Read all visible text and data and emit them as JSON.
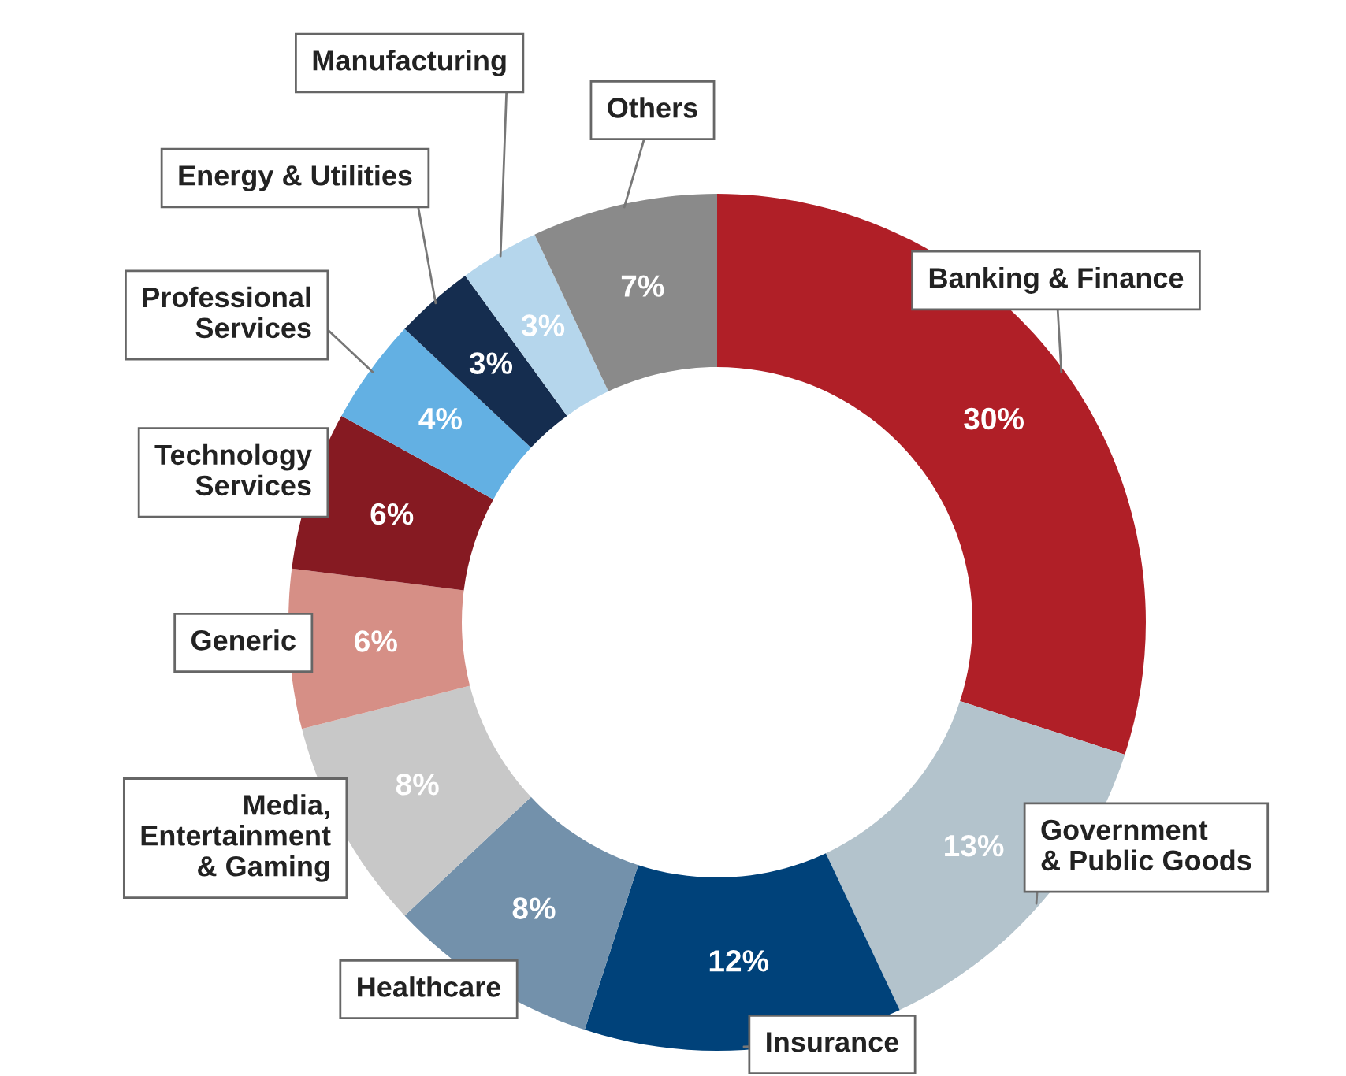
{
  "chart_data": {
    "type": "donut",
    "categories": [
      "Banking & Finance",
      "Government\n& Public Goods",
      "Insurance",
      "Healthcare",
      "Media,\nEntertainment\n& Gaming",
      "Generic",
      "Technology\nServices",
      "Professional\nServices",
      "Energy & Utilities",
      "Manufacturing",
      "Others"
    ],
    "values": [
      30,
      13,
      12,
      8,
      8,
      6,
      6,
      4,
      3,
      3,
      7
    ],
    "value_labels": [
      "30%",
      "13%",
      "12%",
      "8%",
      "8%",
      "6%",
      "6%",
      "4%",
      "3%",
      "3%",
      "7%"
    ],
    "colors": [
      "#b01f27",
      "#b3c3cc",
      "#00427a",
      "#7391ab",
      "#c8c8c8",
      "#d68f86",
      "#861a22",
      "#63b0e3",
      "#152d4f",
      "#b5d6ec",
      "#8a8a8a"
    ],
    "legend": false
  }
}
